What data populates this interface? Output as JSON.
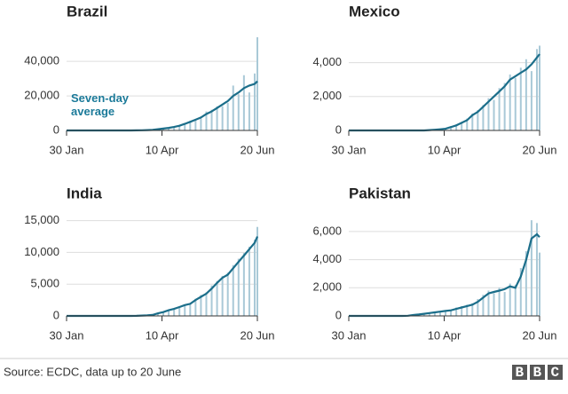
{
  "chart_data": [
    {
      "type": "bar-line",
      "title": "Brazil",
      "annotation": "Seven-day average",
      "x": [
        0,
        4,
        8,
        12,
        16,
        20,
        24,
        28,
        32,
        36,
        40,
        44,
        48,
        52,
        56,
        60,
        64,
        68,
        72,
        76,
        80,
        84,
        88,
        92,
        96,
        100,
        104,
        108,
        112,
        116,
        120,
        124,
        128,
        132,
        136,
        140,
        142
      ],
      "xlim": [
        0,
        142
      ],
      "xticks": [
        {
          "value": 0,
          "label": "30 Jan"
        },
        {
          "value": 71,
          "label": "10 Apr"
        },
        {
          "value": 142,
          "label": "20 Jun"
        }
      ],
      "ylim": [
        0,
        55000
      ],
      "yticks": [
        0,
        {
          "value": 20000,
          "label": "20,000"
        },
        {
          "value": 40000,
          "label": "40,000"
        }
      ],
      "grid": true,
      "series": [
        {
          "type": "bar",
          "color": "#a9c9d7",
          "values": [
            0,
            0,
            0,
            0,
            0,
            0,
            0,
            0,
            0,
            0,
            0,
            0,
            30,
            80,
            150,
            250,
            350,
            1000,
            1200,
            1300,
            2200,
            3000,
            4000,
            5500,
            6500,
            7000,
            11000,
            12000,
            14000,
            14000,
            16000,
            26000,
            21000,
            32000,
            22000,
            33000,
            54000
          ]
        },
        {
          "type": "line",
          "color": "#1b6e8a",
          "values": [
            0,
            0,
            0,
            0,
            0,
            0,
            0,
            0,
            0,
            0,
            0,
            0,
            20,
            50,
            100,
            200,
            300,
            700,
            1100,
            1500,
            2000,
            2700,
            3800,
            5000,
            6200,
            7500,
            9500,
            11000,
            13000,
            15000,
            17000,
            20000,
            22000,
            24500,
            26000,
            27000,
            28500
          ]
        }
      ]
    },
    {
      "type": "bar-line",
      "title": "Mexico",
      "x": [
        0,
        4,
        8,
        12,
        16,
        20,
        24,
        28,
        32,
        36,
        40,
        44,
        48,
        52,
        56,
        60,
        64,
        68,
        72,
        76,
        80,
        84,
        88,
        92,
        96,
        100,
        104,
        108,
        112,
        116,
        120,
        124,
        128,
        132,
        136,
        140,
        142
      ],
      "xlim": [
        0,
        142
      ],
      "xticks": [
        {
          "value": 0,
          "label": "30 Jan"
        },
        {
          "value": 71,
          "label": "10 Apr"
        },
        {
          "value": 142,
          "label": "20 Jun"
        }
      ],
      "ylim": [
        0,
        5600
      ],
      "yticks": [
        0,
        {
          "value": 2000,
          "label": "2,000"
        },
        {
          "value": 4000,
          "label": "4,000"
        }
      ],
      "grid": true,
      "series": [
        {
          "type": "bar",
          "color": "#a9c9d7",
          "values": [
            0,
            0,
            0,
            0,
            0,
            0,
            0,
            0,
            0,
            0,
            0,
            0,
            0,
            0,
            0,
            30,
            50,
            90,
            130,
            250,
            350,
            500,
            700,
            1000,
            1200,
            1500,
            1900,
            1800,
            2500,
            2800,
            3300,
            3100,
            3700,
            4200,
            3500,
            4800,
            5000
          ]
        },
        {
          "type": "line",
          "color": "#1b6e8a",
          "values": [
            0,
            0,
            0,
            0,
            0,
            0,
            0,
            0,
            0,
            0,
            0,
            0,
            0,
            0,
            0,
            20,
            40,
            70,
            100,
            200,
            300,
            450,
            600,
            900,
            1100,
            1400,
            1700,
            2000,
            2300,
            2600,
            3000,
            3200,
            3400,
            3600,
            3900,
            4300,
            4500
          ]
        }
      ]
    },
    {
      "type": "bar-line",
      "title": "India",
      "x": [
        0,
        4,
        8,
        12,
        16,
        20,
        24,
        28,
        32,
        36,
        40,
        44,
        48,
        52,
        56,
        60,
        64,
        68,
        72,
        76,
        80,
        84,
        88,
        92,
        96,
        100,
        104,
        108,
        112,
        116,
        120,
        124,
        128,
        132,
        136,
        140,
        142
      ],
      "xlim": [
        0,
        142
      ],
      "xticks": [
        {
          "value": 0,
          "label": "30 Jan"
        },
        {
          "value": 71,
          "label": "10 Apr"
        },
        {
          "value": 142,
          "label": "20 Jun"
        }
      ],
      "ylim": [
        0,
        15500
      ],
      "yticks": [
        0,
        {
          "value": 5000,
          "label": "5,000"
        },
        {
          "value": 10000,
          "label": "10,000"
        },
        {
          "value": 15000,
          "label": "15,000"
        }
      ],
      "grid": true,
      "series": [
        {
          "type": "bar",
          "color": "#a9c9d7",
          "values": [
            0,
            0,
            0,
            0,
            0,
            0,
            0,
            0,
            0,
            0,
            0,
            0,
            0,
            10,
            70,
            100,
            200,
            500,
            700,
            1000,
            1200,
            1500,
            1800,
            2000,
            2700,
            3300,
            3700,
            4800,
            5500,
            6300,
            6800,
            8000,
            9000,
            9900,
            10900,
            12000,
            14000
          ]
        },
        {
          "type": "line",
          "color": "#1b6e8a",
          "values": [
            0,
            0,
            0,
            0,
            0,
            0,
            0,
            0,
            0,
            0,
            0,
            0,
            0,
            10,
            50,
            80,
            150,
            400,
            600,
            900,
            1100,
            1400,
            1700,
            1900,
            2500,
            3000,
            3500,
            4300,
            5200,
            6000,
            6500,
            7500,
            8500,
            9500,
            10500,
            11500,
            12500
          ]
        }
      ]
    },
    {
      "type": "bar-line",
      "title": "Pakistan",
      "x": [
        0,
        4,
        8,
        12,
        16,
        20,
        24,
        28,
        32,
        36,
        40,
        44,
        48,
        52,
        56,
        60,
        64,
        68,
        72,
        76,
        80,
        84,
        88,
        92,
        96,
        100,
        104,
        108,
        112,
        116,
        120,
        124,
        128,
        132,
        136,
        140,
        142
      ],
      "xlim": [
        0,
        142
      ],
      "xticks": [
        {
          "value": 0,
          "label": "30 Jan"
        },
        {
          "value": 71,
          "label": "10 Apr"
        },
        {
          "value": 142,
          "label": "20 Jun"
        }
      ],
      "ylim": [
        0,
        7000
      ],
      "yticks": [
        0,
        {
          "value": 2000,
          "label": "2,000"
        },
        {
          "value": 4000,
          "label": "4,000"
        },
        {
          "value": 6000,
          "label": "6,000"
        }
      ],
      "grid": true,
      "series": [
        {
          "type": "bar",
          "color": "#a9c9d7",
          "values": [
            0,
            0,
            0,
            0,
            0,
            0,
            0,
            0,
            0,
            0,
            0,
            10,
            80,
            120,
            180,
            240,
            300,
            350,
            400,
            450,
            600,
            700,
            800,
            900,
            1200,
            1500,
            1800,
            1600,
            2000,
            1700,
            2300,
            2200,
            3400,
            4600,
            6800,
            6600,
            4500
          ]
        },
        {
          "type": "line",
          "color": "#1b6e8a",
          "values": [
            0,
            0,
            0,
            0,
            0,
            0,
            0,
            0,
            0,
            0,
            0,
            10,
            60,
            100,
            150,
            200,
            250,
            300,
            350,
            400,
            500,
            600,
            700,
            800,
            1000,
            1300,
            1600,
            1700,
            1800,
            1900,
            2100,
            2000,
            2800,
            4000,
            5500,
            5800,
            5600
          ]
        }
      ]
    }
  ],
  "footer": {
    "source": "Source: ECDC, data up to 20 June",
    "logo": "BBC"
  }
}
